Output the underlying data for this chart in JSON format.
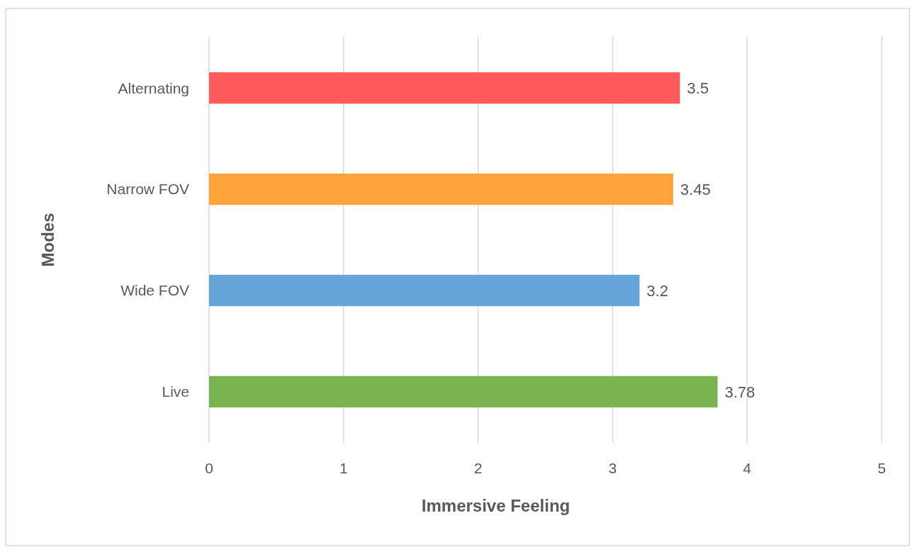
{
  "chart_data": {
    "type": "bar",
    "orientation": "horizontal",
    "categories": [
      "Alternating",
      "Narrow FOV",
      "Wide FOV",
      "Live"
    ],
    "values": [
      3.5,
      3.45,
      3.2,
      3.78
    ],
    "colors": [
      "#ff5a5a",
      "#ffa33a",
      "#66a5d9",
      "#7ab44e"
    ],
    "xlim": [
      0,
      5
    ],
    "xticks": [
      0,
      1,
      2,
      3,
      4,
      5
    ],
    "xlabel": "Immersive Feeling",
    "ylabel": "Modes",
    "grid": "x",
    "data_labels": true
  }
}
